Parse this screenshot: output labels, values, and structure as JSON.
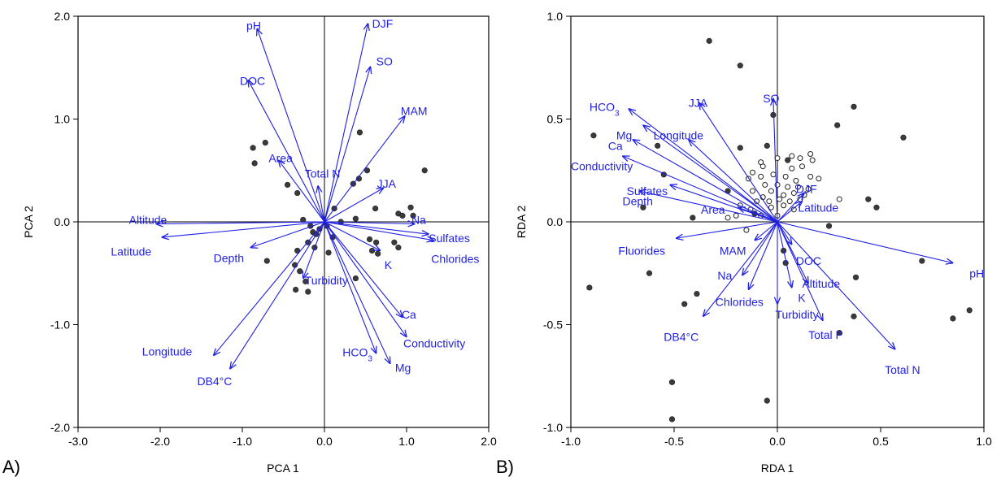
{
  "chart_data": [
    {
      "type": "scatter",
      "panel_label": "A)",
      "xlabel": "PCA 1",
      "ylabel": "PCA 2",
      "xlim": [
        -3.0,
        2.0
      ],
      "ylim": [
        -2.0,
        2.0
      ],
      "xticks": [
        -3.0,
        -2.0,
        -1.0,
        0.0,
        1.0,
        2.0
      ],
      "xtick_labels": [
        "-3.0",
        "-2.0",
        "-1.0",
        "0.0",
        "1.0",
        "2.0"
      ],
      "yticks": [
        -2.0,
        -1.0,
        0.0,
        1.0,
        2.0
      ],
      "ytick_labels": [
        "-2.0",
        "-1.0",
        "0.0",
        "1.0",
        "2.0"
      ],
      "vector_color": "#1f1fe6",
      "vectors": [
        {
          "label": "pH",
          "x": -0.82,
          "y": 1.88,
          "lx": -0.95,
          "ly": 1.91
        },
        {
          "label": "DJF",
          "x": 0.53,
          "y": 1.93,
          "lx": 0.58,
          "ly": 1.93
        },
        {
          "label": "SO",
          "x": 0.56,
          "y": 1.51,
          "lx": 0.63,
          "ly": 1.56
        },
        {
          "label": "DOC",
          "x": -0.93,
          "y": 1.38,
          "lx": -1.03,
          "ly": 1.37
        },
        {
          "label": "MAM",
          "x": 0.98,
          "y": 1.03,
          "lx": 0.93,
          "ly": 1.08
        },
        {
          "label": "Area",
          "x": -0.56,
          "y": 0.6,
          "lx": -0.68,
          "ly": 0.62
        },
        {
          "label": "Total N",
          "x": -0.08,
          "y": 0.35,
          "lx": -0.24,
          "ly": 0.47
        },
        {
          "label": "JJA",
          "x": 0.72,
          "y": 0.33,
          "lx": 0.64,
          "ly": 0.37
        },
        {
          "label": "Altitude",
          "x": -2.05,
          "y": -0.02,
          "lx": -2.38,
          "ly": 0.02
        },
        {
          "label": "Na",
          "x": 1.1,
          "y": -0.02,
          "lx": 1.06,
          "ly": 0.02
        },
        {
          "label": "Latitude",
          "x": -1.98,
          "y": -0.15,
          "lx": -2.6,
          "ly": -0.29
        },
        {
          "label": "Sulfates",
          "x": 1.27,
          "y": -0.12,
          "lx": 1.27,
          "ly": -0.16
        },
        {
          "label": "Chlorides",
          "x": 1.33,
          "y": -0.18,
          "lx": 1.3,
          "ly": -0.36
        },
        {
          "label": "Depth",
          "x": -0.9,
          "y": -0.25,
          "lx": -1.35,
          "ly": -0.35
        },
        {
          "label": "K",
          "x": 0.68,
          "y": -0.28,
          "lx": 0.73,
          "ly": -0.42
        },
        {
          "label": "Turbidity",
          "x": -0.26,
          "y": -0.55,
          "lx": -0.24,
          "ly": -0.57
        },
        {
          "label": "Ca",
          "x": 0.95,
          "y": -0.93,
          "lx": 0.94,
          "ly": -0.9
        },
        {
          "label": "Conductivity",
          "x": 1.0,
          "y": -1.12,
          "lx": 0.96,
          "ly": -1.18
        },
        {
          "label": "HCO3",
          "x": 0.63,
          "y": -1.28,
          "lx": 0.22,
          "ly": -1.27
        },
        {
          "label": "Mg",
          "x": 0.8,
          "y": -1.38,
          "lx": 0.86,
          "ly": -1.42
        },
        {
          "label": "Longitude",
          "x": -1.35,
          "y": -1.3,
          "lx": -2.22,
          "ly": -1.26
        },
        {
          "label": "DB4°C",
          "x": -1.15,
          "y": -1.43,
          "lx": -1.55,
          "ly": -1.55
        }
      ],
      "points": [
        [
          -0.87,
          0.72
        ],
        [
          -0.85,
          0.57
        ],
        [
          -0.72,
          0.77
        ],
        [
          -0.45,
          0.36
        ],
        [
          -0.33,
          0.28
        ],
        [
          0.35,
          0.37
        ],
        [
          0.42,
          0.42
        ],
        [
          0.52,
          0.5
        ],
        [
          0.43,
          0.87
        ],
        [
          1.22,
          0.5
        ],
        [
          -0.26,
          0.02
        ],
        [
          -0.17,
          -0.04
        ],
        [
          -0.14,
          -0.1
        ],
        [
          -0.1,
          -0.12
        ],
        [
          -0.06,
          -0.07
        ],
        [
          0.03,
          -0.04
        ],
        [
          0.1,
          -0.15
        ],
        [
          0.12,
          0.13
        ],
        [
          0.2,
          0.0
        ],
        [
          0.38,
          0.03
        ],
        [
          0.62,
          0.13
        ],
        [
          0.9,
          0.08
        ],
        [
          0.95,
          0.06
        ],
        [
          1.05,
          0.14
        ],
        [
          1.08,
          0.06
        ],
        [
          0.55,
          -0.17
        ],
        [
          0.63,
          -0.2
        ],
        [
          0.58,
          -0.28
        ],
        [
          0.65,
          -0.31
        ],
        [
          0.85,
          -0.2
        ],
        [
          0.9,
          -0.25
        ],
        [
          -0.33,
          -0.28
        ],
        [
          -0.36,
          -0.42
        ],
        [
          -0.3,
          -0.48
        ],
        [
          -0.23,
          -0.58
        ],
        [
          -0.35,
          -0.66
        ],
        [
          -0.2,
          -0.68
        ],
        [
          -0.7,
          -0.38
        ],
        [
          0.38,
          -0.55
        ],
        [
          0.05,
          -0.3
        ],
        [
          -0.12,
          -0.25
        ],
        [
          -0.2,
          -0.2
        ]
      ]
    },
    {
      "type": "scatter",
      "panel_label": "B)",
      "xlabel": "RDA 1",
      "ylabel": "RDA 2",
      "xlim": [
        -1.0,
        1.0
      ],
      "ylim": [
        -1.0,
        1.0
      ],
      "xticks": [
        -1.0,
        -0.5,
        0.0,
        0.5,
        1.0
      ],
      "xtick_labels": [
        "-1.0",
        "-0.5",
        "0.0",
        "0.5",
        "1.0"
      ],
      "yticks": [
        -1.0,
        -0.5,
        0.0,
        0.5,
        1.0
      ],
      "ytick_labels": [
        "-1.0",
        "-0.5",
        "0.0",
        "0.5",
        "1.0"
      ],
      "vector_color": "#1f1fe6",
      "vectors": [
        {
          "label": "HCO3",
          "x": -0.72,
          "y": 0.55,
          "lx": -0.91,
          "ly": 0.56
        },
        {
          "label": "JJA",
          "x": -0.38,
          "y": 0.58,
          "lx": -0.43,
          "ly": 0.58
        },
        {
          "label": "SO",
          "x": -0.02,
          "y": 0.6,
          "lx": -0.07,
          "ly": 0.6
        },
        {
          "label": "Mg",
          "x": -0.65,
          "y": 0.47,
          "lx": -0.78,
          "ly": 0.42
        },
        {
          "label": "Ca",
          "x": -0.7,
          "y": 0.4,
          "lx": -0.82,
          "ly": 0.37
        },
        {
          "label": "Longitude",
          "x": -0.43,
          "y": 0.4,
          "lx": -0.6,
          "ly": 0.42
        },
        {
          "label": "Conductivity",
          "x": -0.75,
          "y": 0.32,
          "lx": -1.0,
          "ly": 0.27
        },
        {
          "label": "Sulfates",
          "x": -0.52,
          "y": 0.18,
          "lx": -0.73,
          "ly": 0.15
        },
        {
          "label": "Depth",
          "x": -0.67,
          "y": 0.15,
          "lx": -0.75,
          "ly": 0.1
        },
        {
          "label": "Area",
          "x": -0.19,
          "y": 0.07,
          "lx": -0.37,
          "ly": 0.06
        },
        {
          "label": "DJF",
          "x": 0.13,
          "y": 0.14,
          "lx": 0.09,
          "ly": 0.16
        },
        {
          "label": "Latitude",
          "x": 0.12,
          "y": 0.1,
          "lx": 0.1,
          "ly": 0.07
        },
        {
          "label": "Fluorides",
          "x": -0.49,
          "y": -0.08,
          "lx": -0.77,
          "ly": -0.14
        },
        {
          "label": "MAM",
          "x": -0.11,
          "y": -0.09,
          "lx": -0.28,
          "ly": -0.14
        },
        {
          "label": "Na",
          "x": -0.17,
          "y": -0.26,
          "lx": -0.29,
          "ly": -0.26
        },
        {
          "label": "DOC",
          "x": 0.07,
          "y": -0.11,
          "lx": 0.09,
          "ly": -0.19
        },
        {
          "label": "Altitude",
          "x": 0.15,
          "y": -0.3,
          "lx": 0.12,
          "ly": -0.3
        },
        {
          "label": "K",
          "x": 0.07,
          "y": -0.32,
          "lx": 0.1,
          "ly": -0.37
        },
        {
          "label": "Chlorides",
          "x": -0.14,
          "y": -0.33,
          "lx": -0.3,
          "ly": -0.39
        },
        {
          "label": "Turbidity",
          "x": 0.0,
          "y": -0.4,
          "lx": -0.01,
          "ly": -0.45
        },
        {
          "label": "pH",
          "x": 0.85,
          "y": -0.2,
          "lx": 0.93,
          "ly": -0.25
        },
        {
          "label": "Total P",
          "x": 0.22,
          "y": -0.48,
          "lx": 0.15,
          "ly": -0.55
        },
        {
          "label": "DB4°C",
          "x": -0.36,
          "y": -0.46,
          "lx": -0.55,
          "ly": -0.56
        },
        {
          "label": "Total N",
          "x": 0.57,
          "y": -0.62,
          "lx": 0.52,
          "ly": -0.72
        }
      ],
      "points_filled": [
        [
          -0.33,
          0.88
        ],
        [
          -0.18,
          0.76
        ],
        [
          0.37,
          0.56
        ],
        [
          0.29,
          0.47
        ],
        [
          -0.89,
          0.42
        ],
        [
          -0.58,
          0.37
        ],
        [
          0.61,
          0.41
        ],
        [
          -0.18,
          0.36
        ],
        [
          -0.05,
          0.37
        ],
        [
          -0.55,
          0.23
        ],
        [
          -0.24,
          0.15
        ],
        [
          0.44,
          0.11
        ],
        [
          0.48,
          0.07
        ],
        [
          -0.65,
          0.07
        ],
        [
          -0.41,
          0.02
        ],
        [
          0.7,
          -0.19
        ],
        [
          -0.62,
          -0.25
        ],
        [
          -0.91,
          -0.32
        ],
        [
          0.38,
          -0.27
        ],
        [
          -0.39,
          -0.35
        ],
        [
          -0.45,
          -0.4
        ],
        [
          0.37,
          -0.46
        ],
        [
          0.3,
          -0.54
        ],
        [
          0.85,
          -0.47
        ],
        [
          0.93,
          -0.43
        ],
        [
          -0.51,
          -0.78
        ],
        [
          -0.05,
          -0.87
        ],
        [
          -0.51,
          -0.96
        ],
        [
          0.03,
          -0.14
        ],
        [
          0.04,
          -0.2
        ],
        [
          0.25,
          -0.02
        ],
        [
          -0.02,
          0.52
        ],
        [
          -0.11,
          0.04
        ],
        [
          0.05,
          0.3
        ]
      ],
      "points_open": [
        [
          0.0,
          0.31
        ],
        [
          0.07,
          0.32
        ],
        [
          0.11,
          0.31
        ],
        [
          0.16,
          0.33
        ],
        [
          0.17,
          0.3
        ],
        [
          0.12,
          0.27
        ],
        [
          0.07,
          0.26
        ],
        [
          -0.07,
          0.27
        ],
        [
          -0.08,
          0.29
        ],
        [
          -0.12,
          0.24
        ],
        [
          -0.14,
          0.21
        ],
        [
          -0.08,
          0.22
        ],
        [
          -0.02,
          0.23
        ],
        [
          0.04,
          0.22
        ],
        [
          0.09,
          0.2
        ],
        [
          -0.06,
          0.18
        ],
        [
          0.0,
          0.18
        ],
        [
          0.05,
          0.17
        ],
        [
          0.1,
          0.17
        ],
        [
          0.15,
          0.16
        ],
        [
          -0.12,
          0.15
        ],
        [
          -0.03,
          0.15
        ],
        [
          0.03,
          0.13
        ],
        [
          0.08,
          0.14
        ],
        [
          0.13,
          0.13
        ],
        [
          -0.07,
          0.12
        ],
        [
          0.01,
          0.11
        ],
        [
          0.06,
          0.1
        ],
        [
          -0.1,
          0.1
        ],
        [
          0.11,
          0.11
        ],
        [
          -0.18,
          0.08
        ],
        [
          -0.13,
          0.06
        ],
        [
          -0.03,
          0.07
        ],
        [
          0.03,
          0.08
        ],
        [
          0.08,
          0.06
        ],
        [
          -0.2,
          0.03
        ],
        [
          -0.08,
          0.03
        ],
        [
          0.0,
          0.03
        ],
        [
          -0.24,
          0.02
        ],
        [
          0.3,
          0.11
        ],
        [
          -0.15,
          -0.04
        ],
        [
          0.16,
          0.22
        ],
        [
          0.2,
          0.21
        ],
        [
          -0.04,
          0.1
        ]
      ]
    }
  ]
}
